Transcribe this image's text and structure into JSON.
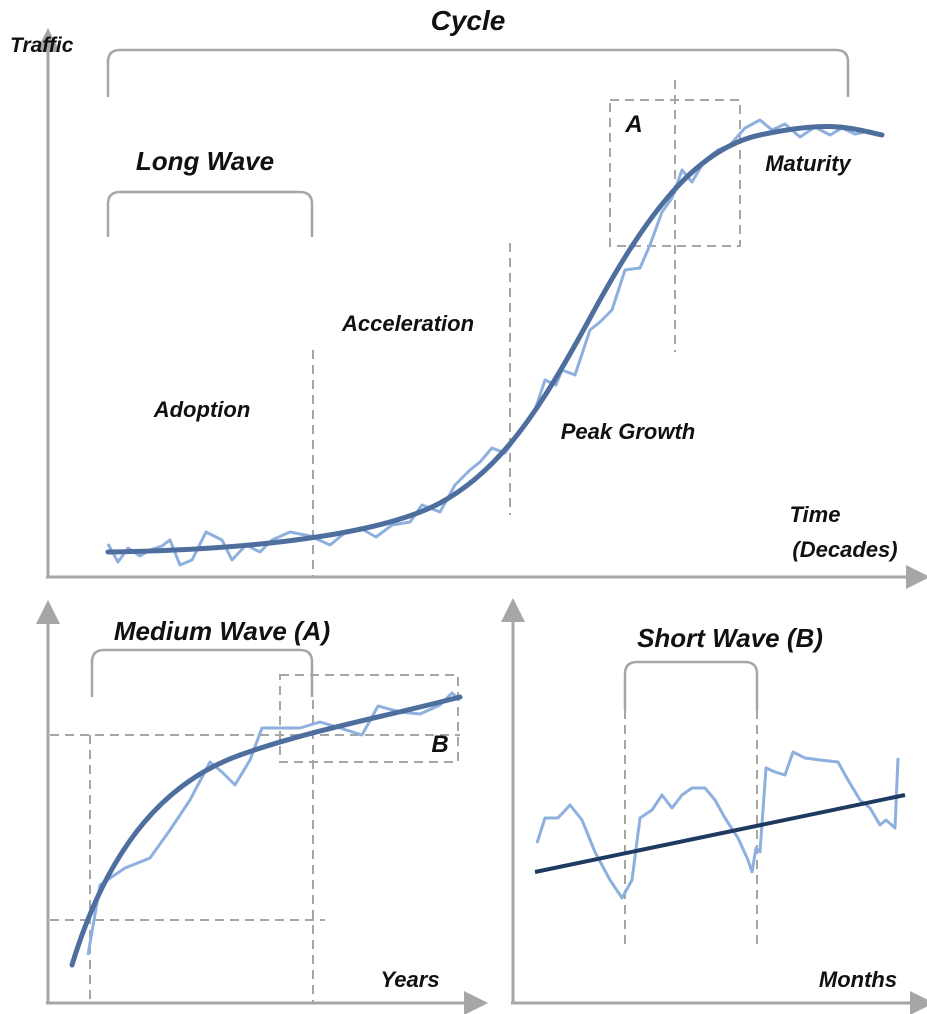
{
  "cycle_panel": {
    "title": "Cycle",
    "y_axis": "Traffic",
    "x_axis_lines": [
      "Time",
      "(Decades)"
    ],
    "long_wave": "Long Wave",
    "phases": [
      "Adoption",
      "Acceleration",
      "Peak Growth",
      "Maturity"
    ],
    "box": "A"
  },
  "medium_panel": {
    "title": "Medium Wave (A)",
    "box": "B",
    "x_axis": "Years"
  },
  "short_panel": {
    "title": "Short Wave (B)",
    "x_axis": "Months"
  }
}
